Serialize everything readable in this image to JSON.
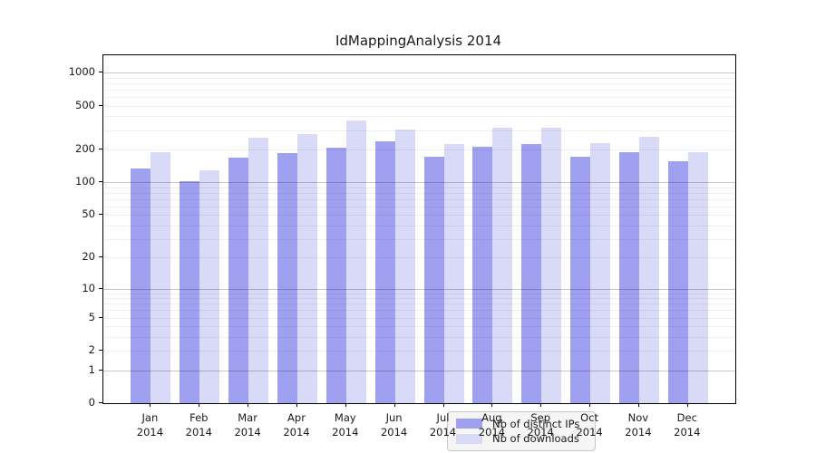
{
  "title": "IdMappingAnalysis 2014",
  "colors": {
    "distinct_ips_bar": "#a0a0f0",
    "downloads_bar": "#d9d9f8",
    "axis": "#000000",
    "legend_background": "#f4f4f4",
    "legend_border": "#c9c9c9"
  },
  "chart_data": {
    "type": "bar",
    "title": "IdMappingAnalysis 2014",
    "categories": [
      {
        "month": "Jan",
        "year": "2014"
      },
      {
        "month": "Feb",
        "year": "2014"
      },
      {
        "month": "Mar",
        "year": "2014"
      },
      {
        "month": "Apr",
        "year": "2014"
      },
      {
        "month": "May",
        "year": "2014"
      },
      {
        "month": "Jun",
        "year": "2014"
      },
      {
        "month": "Jul",
        "year": "2014"
      },
      {
        "month": "Aug",
        "year": "2014"
      },
      {
        "month": "Sep",
        "year": "2014"
      },
      {
        "month": "Oct",
        "year": "2014"
      },
      {
        "month": "Nov",
        "year": "2014"
      },
      {
        "month": "Dec",
        "year": "2014"
      }
    ],
    "series": [
      {
        "name": "Nb of distinct IPs",
        "color": "#a0a0f0",
        "values": [
          134,
          103,
          167,
          183,
          205,
          234,
          172,
          212,
          225,
          172,
          187,
          155
        ]
      },
      {
        "name": "Nb of downloads",
        "color": "#d9d9f8",
        "values": [
          188,
          128,
          255,
          277,
          365,
          303,
          225,
          311,
          315,
          229,
          261,
          188
        ]
      }
    ],
    "xlabel": "",
    "ylabel": "",
    "yscale": "log10(value+1)",
    "yticks": [
      1000,
      500,
      200,
      100,
      50,
      20,
      10,
      5,
      2,
      1,
      0
    ],
    "ylim": [
      0,
      1430
    ],
    "grid": "horizontal only; faint minor log lines, darker lines at decades (1, 10, 100, 1000); drawn over bars",
    "legend_position": "inside plot, lower center"
  }
}
